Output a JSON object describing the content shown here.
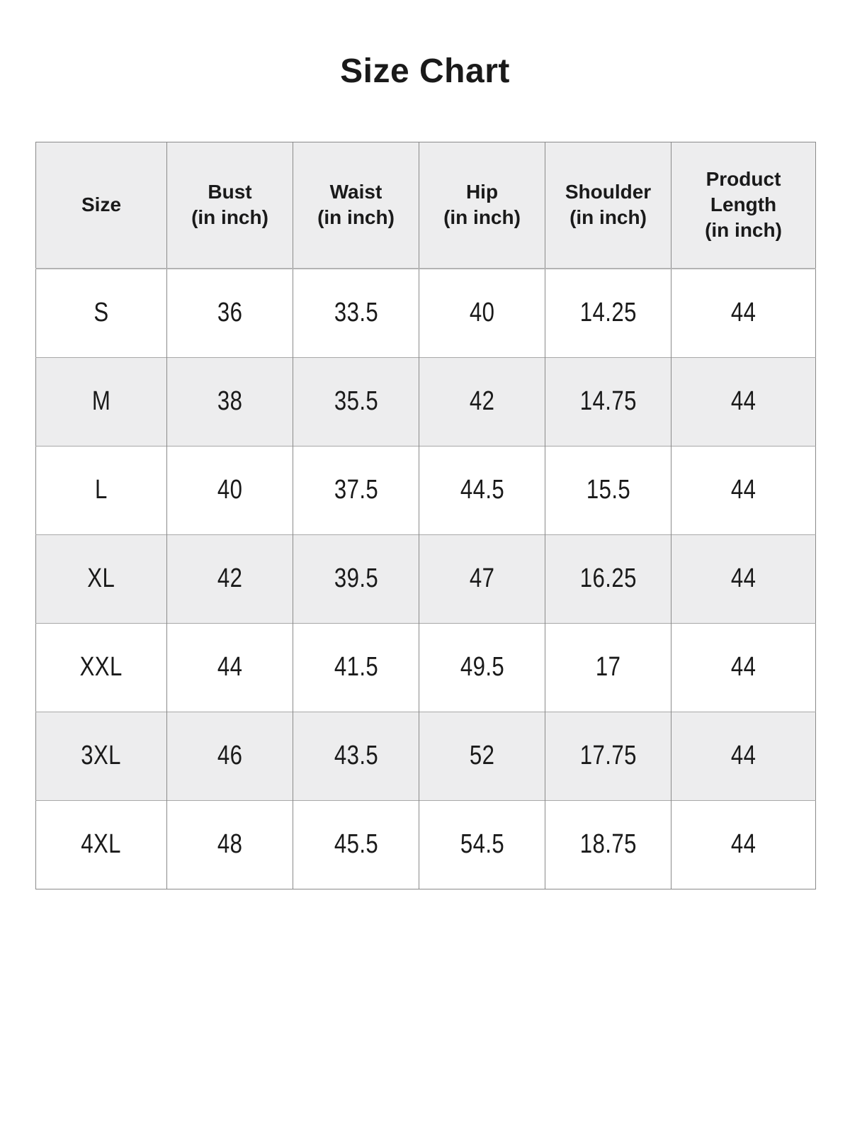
{
  "title": "Size Chart",
  "table": {
    "columns": [
      {
        "key": "size",
        "label": "Size"
      },
      {
        "key": "bust",
        "label": "Bust\n(in inch)"
      },
      {
        "key": "waist",
        "label": "Waist\n(in inch)"
      },
      {
        "key": "hip",
        "label": "Hip\n(in inch)"
      },
      {
        "key": "shoulder",
        "label": "Shoulder\n(in inch)"
      },
      {
        "key": "product-length",
        "label": "Product\nLength\n(in inch)"
      }
    ],
    "rows": [
      {
        "size": "S",
        "values": [
          "36",
          "33.5",
          "40",
          "14.25",
          "44"
        ]
      },
      {
        "size": "M",
        "values": [
          "38",
          "35.5",
          "42",
          "14.75",
          "44"
        ]
      },
      {
        "size": "L",
        "values": [
          "40",
          "37.5",
          "44.5",
          "15.5",
          "44"
        ]
      },
      {
        "size": "XL",
        "values": [
          "42",
          "39.5",
          "47",
          "16.25",
          "44"
        ]
      },
      {
        "size": "XXL",
        "values": [
          "44",
          "41.5",
          "49.5",
          "17",
          "44"
        ]
      },
      {
        "size": "3XL",
        "values": [
          "46",
          "43.5",
          "52",
          "17.75",
          "44"
        ]
      },
      {
        "size": "4XL",
        "values": [
          "48",
          "45.5",
          "54.5",
          "18.75",
          "44"
        ]
      }
    ]
  },
  "chart_data": {
    "type": "table",
    "title": "Size Chart",
    "columns": [
      "Size",
      "Bust (in inch)",
      "Waist (in inch)",
      "Hip (in inch)",
      "Shoulder (in inch)",
      "Product Length (in inch)"
    ],
    "rows": [
      [
        "S",
        36,
        33.5,
        40,
        14.25,
        44
      ],
      [
        "M",
        38,
        35.5,
        42,
        14.75,
        44
      ],
      [
        "L",
        40,
        37.5,
        44.5,
        15.5,
        44
      ],
      [
        "XL",
        42,
        39.5,
        47,
        16.25,
        44
      ],
      [
        "XXL",
        44,
        41.5,
        49.5,
        17,
        44
      ],
      [
        "3XL",
        46,
        43.5,
        52,
        17.75,
        44
      ],
      [
        "4XL",
        48,
        45.5,
        54.5,
        18.75,
        44
      ]
    ]
  },
  "colors": {
    "page_bg": "#ffffff",
    "header_bg": "#ededee",
    "row_bg": "#ffffff",
    "alt_row_bg": "#ededee",
    "border_vertical": "#8a8a8a",
    "border_horizontal": "#a8a8a8",
    "border_horizontal_strong": "#b3b3b3",
    "text": "#1a1a1a"
  }
}
